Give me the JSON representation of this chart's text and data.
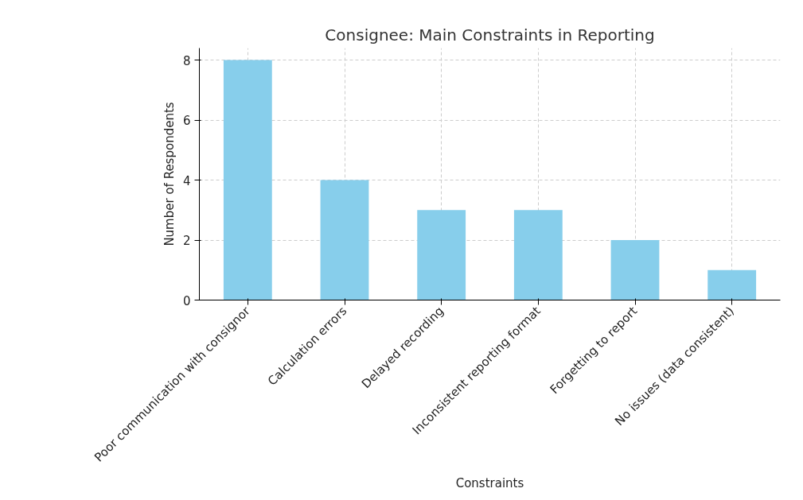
{
  "chart_data": {
    "type": "bar",
    "title": "Consignee: Main Constraints in Reporting",
    "xlabel": "Constraints",
    "ylabel": "Number of Respondents",
    "categories": [
      "Poor communication with consignor",
      "Calculation errors",
      "Delayed recording",
      "Inconsistent reporting format",
      "Forgetting to report",
      "No issues (data consistent)"
    ],
    "values": [
      8,
      4,
      3,
      3,
      2,
      1
    ],
    "color": "#87ceeb",
    "ylim": [
      0,
      8.4
    ],
    "yticks": [
      0,
      2,
      4,
      6,
      8
    ],
    "grid": true
  }
}
